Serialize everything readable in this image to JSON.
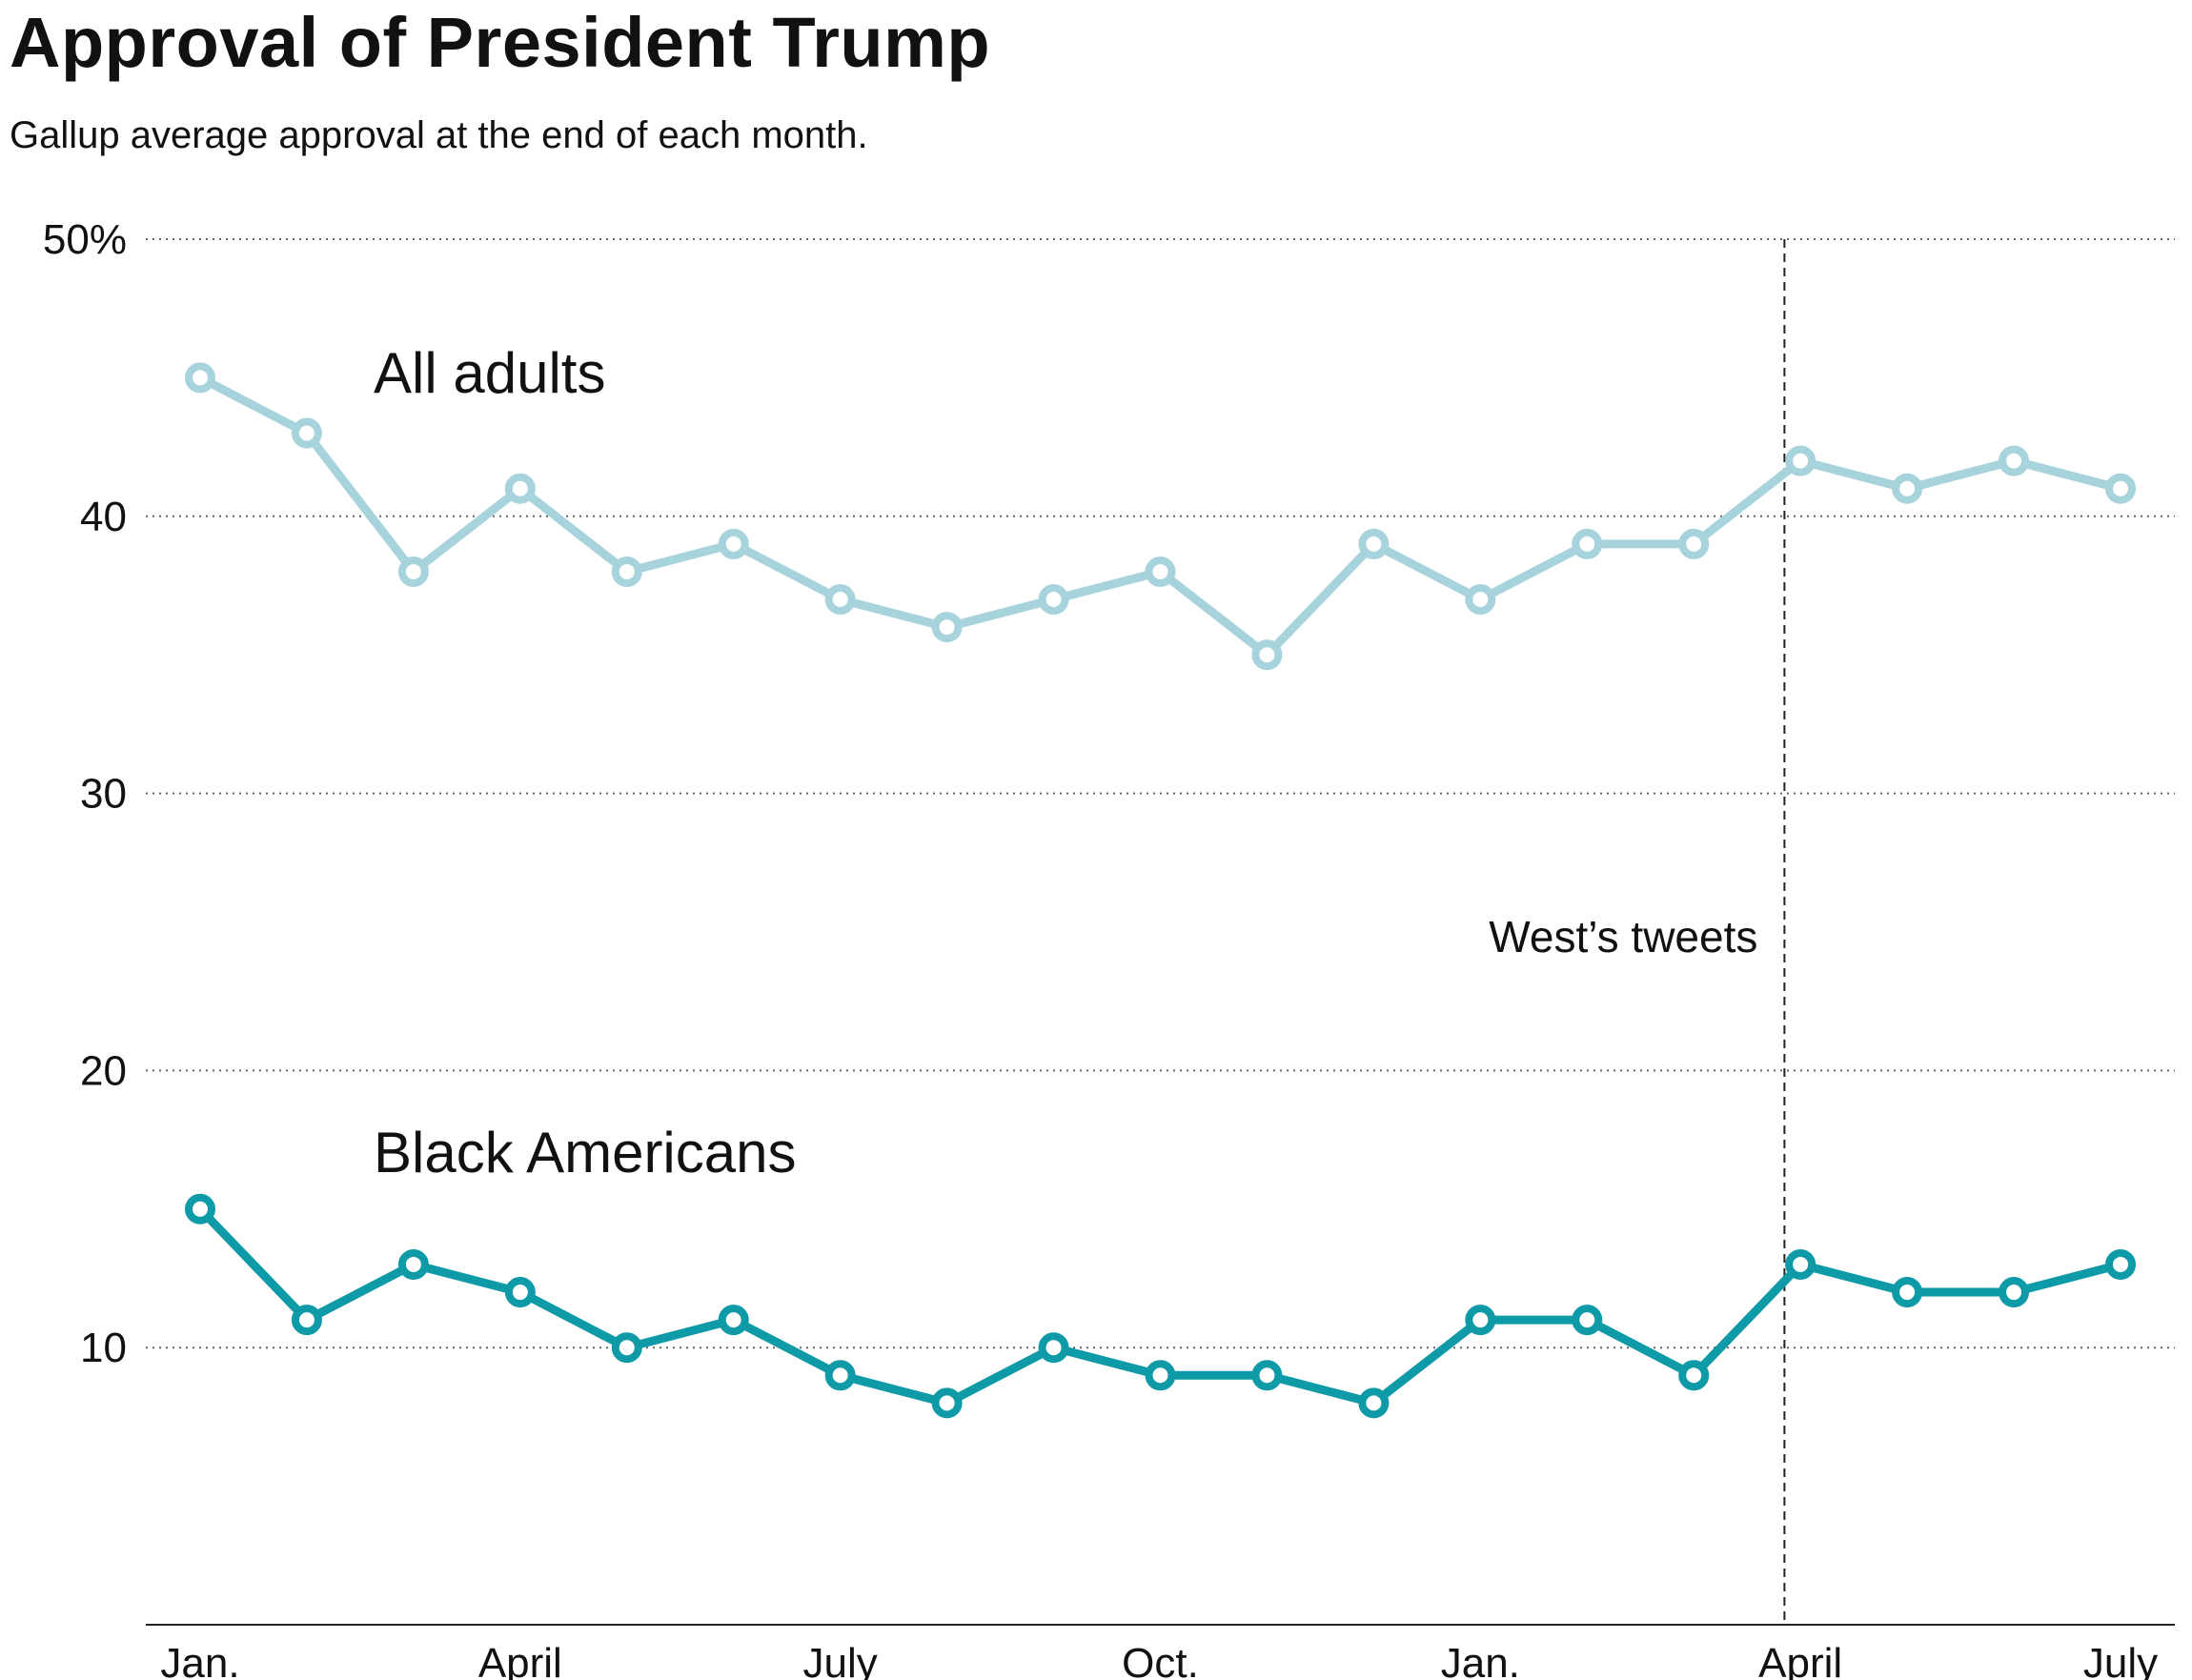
{
  "title": "Approval of President Trump",
  "subtitle": "Gallup average approval at the end of each month.",
  "chart_data": {
    "type": "line",
    "x": [
      "Jan.",
      "Feb.",
      "March",
      "April",
      "May",
      "June",
      "July",
      "Aug.",
      "Sept.",
      "Oct.",
      "Nov.",
      "Dec.",
      "Jan.",
      "Feb.",
      "March",
      "April",
      "May",
      "June",
      "July"
    ],
    "x_tick_labels": [
      "Jan.",
      "April",
      "July",
      "Oct.",
      "Jan.",
      "April",
      "July"
    ],
    "x_tick_indices": [
      0,
      3,
      6,
      9,
      12,
      15,
      18
    ],
    "y_ticks": [
      {
        "value": 50,
        "label": "50%"
      },
      {
        "value": 40,
        "label": "40"
      },
      {
        "value": 30,
        "label": "30"
      },
      {
        "value": 20,
        "label": "20"
      },
      {
        "value": 10,
        "label": "10"
      }
    ],
    "ylim": [
      0,
      50
    ],
    "grid": "horizontal dotted",
    "series": [
      {
        "name": "All adults",
        "color": "#a6d3dc",
        "values": [
          45,
          43,
          38,
          41,
          38,
          39,
          37,
          36,
          37,
          38,
          35,
          39,
          37,
          39,
          39,
          42,
          41,
          42,
          41
        ]
      },
      {
        "name": "Black Americans",
        "color": "#0f9aa8",
        "values": [
          15,
          11,
          13,
          12,
          10,
          11,
          9,
          8,
          10,
          9,
          9,
          8,
          11,
          11,
          9,
          13,
          12,
          12,
          13
        ]
      }
    ],
    "annotation": {
      "text": "West’s tweets",
      "x_index": 14.85
    }
  }
}
